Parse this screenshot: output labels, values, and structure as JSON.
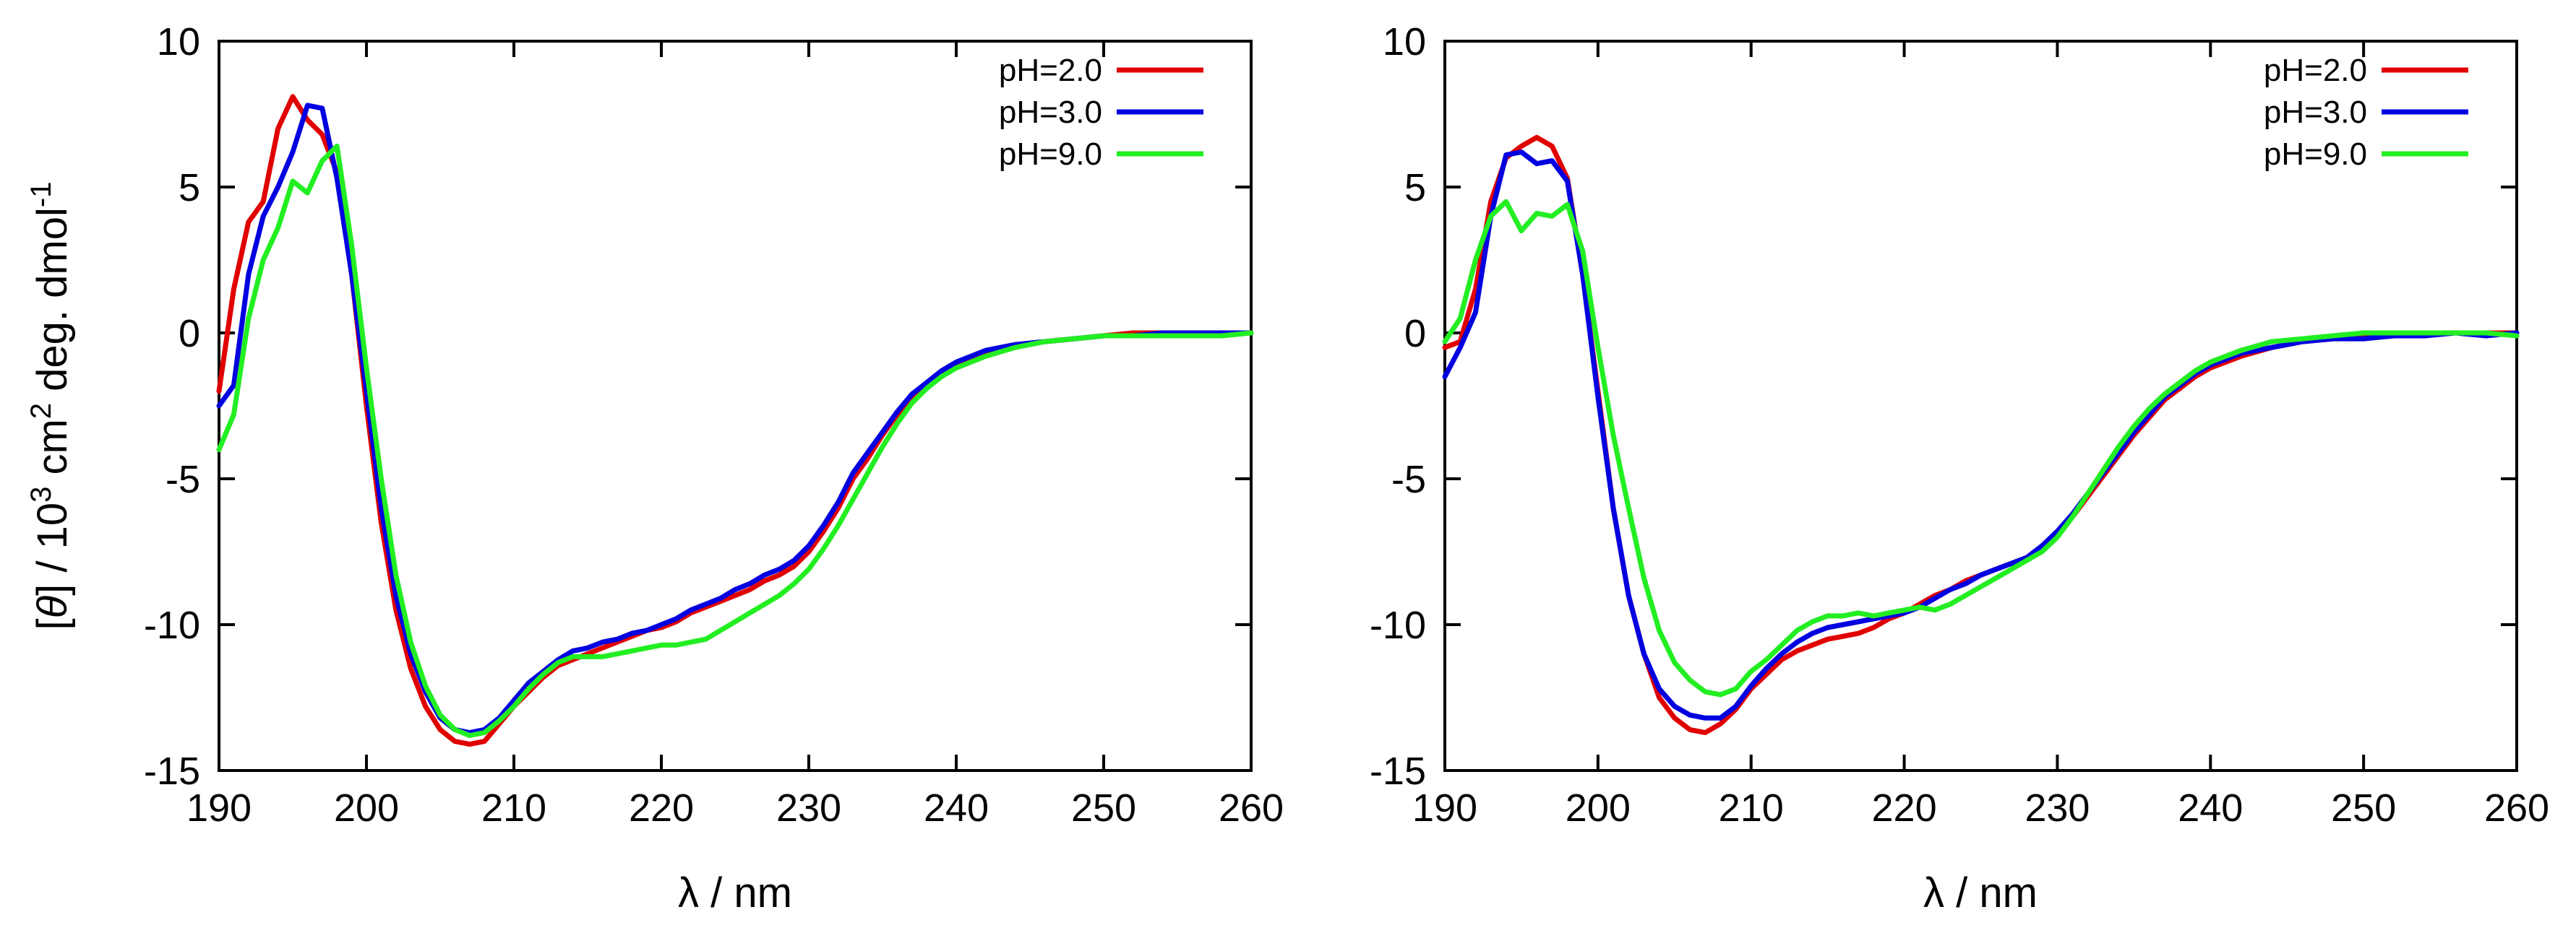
{
  "chart_data": [
    {
      "type": "line",
      "panel": "left",
      "title": "",
      "xlabel": "λ / nm",
      "ylabel": "[θ] / 10^3 cm^2 deg. dmol^-1",
      "xlim": [
        190,
        260
      ],
      "ylim": [
        -15,
        10
      ],
      "xticks": [
        190,
        200,
        210,
        220,
        230,
        240,
        250,
        260
      ],
      "yticks": [
        10,
        5,
        0,
        -5,
        -10,
        -15
      ],
      "legend_position": "top-right",
      "series": [
        {
          "name": "pH=2.0",
          "color": "#e00000",
          "x": [
            190,
            191,
            192,
            193,
            194,
            195,
            196,
            197,
            198,
            199,
            200,
            201,
            202,
            203,
            204,
            205,
            206,
            207,
            208,
            209,
            210,
            211,
            212,
            213,
            214,
            215,
            216,
            217,
            218,
            219,
            220,
            221,
            222,
            223,
            224,
            225,
            226,
            227,
            228,
            229,
            230,
            231,
            232,
            233,
            234,
            235,
            236,
            237,
            238,
            239,
            240,
            242,
            244,
            246,
            248,
            250,
            252,
            254,
            256,
            258,
            260
          ],
          "y": [
            -2.0,
            1.5,
            3.8,
            4.5,
            7.0,
            8.1,
            7.3,
            6.8,
            5.5,
            2.0,
            -2.5,
            -6.5,
            -9.5,
            -11.5,
            -12.8,
            -13.6,
            -14.0,
            -14.1,
            -14.0,
            -13.4,
            -12.8,
            -12.3,
            -11.8,
            -11.4,
            -11.2,
            -11.0,
            -10.8,
            -10.6,
            -10.4,
            -10.2,
            -10.1,
            -9.9,
            -9.6,
            -9.4,
            -9.2,
            -9.0,
            -8.8,
            -8.5,
            -8.3,
            -8.0,
            -7.5,
            -6.8,
            -6.0,
            -5.0,
            -4.3,
            -3.5,
            -2.8,
            -2.2,
            -1.8,
            -1.4,
            -1.1,
            -0.7,
            -0.4,
            -0.3,
            -0.2,
            -0.1,
            0.0,
            0.0,
            -0.1,
            0.0,
            0.0
          ]
        },
        {
          "name": "pH=3.0",
          "color": "#0000e0",
          "x": [
            190,
            191,
            192,
            193,
            194,
            195,
            196,
            197,
            198,
            199,
            200,
            201,
            202,
            203,
            204,
            205,
            206,
            207,
            208,
            209,
            210,
            211,
            212,
            213,
            214,
            215,
            216,
            217,
            218,
            219,
            220,
            221,
            222,
            223,
            224,
            225,
            226,
            227,
            228,
            229,
            230,
            231,
            232,
            233,
            234,
            235,
            236,
            237,
            238,
            239,
            240,
            242,
            244,
            246,
            248,
            250,
            252,
            254,
            256,
            258,
            260
          ],
          "y": [
            -2.5,
            -1.8,
            2.0,
            4.0,
            5.0,
            6.2,
            7.8,
            7.7,
            5.3,
            2.0,
            -2.0,
            -6.0,
            -9.0,
            -11.0,
            -12.3,
            -13.2,
            -13.6,
            -13.7,
            -13.6,
            -13.2,
            -12.6,
            -12.0,
            -11.6,
            -11.2,
            -10.9,
            -10.8,
            -10.6,
            -10.5,
            -10.3,
            -10.2,
            -10.0,
            -9.8,
            -9.5,
            -9.3,
            -9.1,
            -8.8,
            -8.6,
            -8.3,
            -8.1,
            -7.8,
            -7.3,
            -6.6,
            -5.8,
            -4.8,
            -4.1,
            -3.4,
            -2.7,
            -2.1,
            -1.7,
            -1.3,
            -1.0,
            -0.6,
            -0.4,
            -0.3,
            -0.2,
            -0.1,
            -0.1,
            0.0,
            0.0,
            0.0,
            0.0
          ]
        },
        {
          "name": "pH=9.0",
          "color": "#22ee22",
          "x": [
            190,
            191,
            192,
            193,
            194,
            195,
            196,
            197,
            198,
            199,
            200,
            201,
            202,
            203,
            204,
            205,
            206,
            207,
            208,
            209,
            210,
            211,
            212,
            213,
            214,
            215,
            216,
            217,
            218,
            219,
            220,
            221,
            222,
            223,
            224,
            225,
            226,
            227,
            228,
            229,
            230,
            231,
            232,
            233,
            234,
            235,
            236,
            237,
            238,
            239,
            240,
            242,
            244,
            246,
            248,
            250,
            252,
            254,
            256,
            258,
            260
          ],
          "y": [
            -4.0,
            -2.8,
            0.5,
            2.5,
            3.6,
            5.2,
            4.8,
            5.9,
            6.4,
            3.0,
            -1.2,
            -5.0,
            -8.3,
            -10.6,
            -12.1,
            -13.1,
            -13.6,
            -13.8,
            -13.7,
            -13.3,
            -12.8,
            -12.2,
            -11.7,
            -11.3,
            -11.1,
            -11.1,
            -11.1,
            -11.0,
            -10.9,
            -10.8,
            -10.7,
            -10.7,
            -10.6,
            -10.5,
            -10.2,
            -9.9,
            -9.6,
            -9.3,
            -9.0,
            -8.6,
            -8.1,
            -7.4,
            -6.6,
            -5.7,
            -4.8,
            -3.9,
            -3.1,
            -2.4,
            -1.9,
            -1.5,
            -1.2,
            -0.8,
            -0.5,
            -0.3,
            -0.2,
            -0.1,
            -0.1,
            -0.1,
            -0.1,
            -0.1,
            0.0
          ]
        }
      ]
    },
    {
      "type": "line",
      "panel": "right",
      "title": "",
      "xlabel": "λ / nm",
      "ylabel": "",
      "xlim": [
        190,
        260
      ],
      "ylim": [
        -15,
        10
      ],
      "xticks": [
        190,
        200,
        210,
        220,
        230,
        240,
        250,
        260
      ],
      "yticks": [
        10,
        5,
        0,
        -5,
        -10,
        -15
      ],
      "legend_position": "top-right",
      "series": [
        {
          "name": "pH=2.0",
          "color": "#e00000",
          "x": [
            190,
            191,
            192,
            193,
            194,
            195,
            196,
            197,
            198,
            199,
            200,
            201,
            202,
            203,
            204,
            205,
            206,
            207,
            208,
            209,
            210,
            211,
            212,
            213,
            214,
            215,
            216,
            217,
            218,
            219,
            220,
            221,
            222,
            223,
            224,
            225,
            226,
            227,
            228,
            229,
            230,
            231,
            232,
            233,
            234,
            235,
            236,
            237,
            238,
            239,
            240,
            242,
            244,
            246,
            248,
            250,
            252,
            254,
            256,
            258,
            260
          ],
          "y": [
            -0.5,
            -0.3,
            1.5,
            4.5,
            6.0,
            6.4,
            6.7,
            6.4,
            5.3,
            2.0,
            -2.0,
            -6.0,
            -9.0,
            -11.0,
            -12.5,
            -13.2,
            -13.6,
            -13.7,
            -13.4,
            -12.9,
            -12.2,
            -11.7,
            -11.2,
            -10.9,
            -10.7,
            -10.5,
            -10.4,
            -10.3,
            -10.1,
            -9.8,
            -9.6,
            -9.3,
            -9.0,
            -8.8,
            -8.5,
            -8.3,
            -8.1,
            -7.9,
            -7.7,
            -7.4,
            -6.9,
            -6.3,
            -5.6,
            -4.9,
            -4.2,
            -3.5,
            -2.9,
            -2.3,
            -1.9,
            -1.5,
            -1.2,
            -0.8,
            -0.5,
            -0.3,
            -0.2,
            -0.1,
            -0.1,
            0.0,
            0.0,
            0.0,
            0.0
          ]
        },
        {
          "name": "pH=3.0",
          "color": "#0000e0",
          "x": [
            190,
            191,
            192,
            193,
            194,
            195,
            196,
            197,
            198,
            199,
            200,
            201,
            202,
            203,
            204,
            205,
            206,
            207,
            208,
            209,
            210,
            211,
            212,
            213,
            214,
            215,
            216,
            217,
            218,
            219,
            220,
            221,
            222,
            223,
            224,
            225,
            226,
            227,
            228,
            229,
            230,
            231,
            232,
            233,
            234,
            235,
            236,
            237,
            238,
            239,
            240,
            242,
            244,
            246,
            248,
            250,
            252,
            254,
            256,
            258,
            260
          ],
          "y": [
            -1.5,
            -0.5,
            0.7,
            4.0,
            6.1,
            6.2,
            5.8,
            5.9,
            5.2,
            2.0,
            -2.2,
            -6.0,
            -9.0,
            -11.0,
            -12.2,
            -12.8,
            -13.1,
            -13.2,
            -13.2,
            -12.8,
            -12.1,
            -11.5,
            -11.0,
            -10.6,
            -10.3,
            -10.1,
            -10.0,
            -9.9,
            -9.8,
            -9.7,
            -9.6,
            -9.4,
            -9.1,
            -8.8,
            -8.6,
            -8.3,
            -8.1,
            -7.9,
            -7.7,
            -7.3,
            -6.8,
            -6.2,
            -5.5,
            -4.8,
            -4.1,
            -3.4,
            -2.8,
            -2.2,
            -1.8,
            -1.4,
            -1.1,
            -0.7,
            -0.5,
            -0.3,
            -0.2,
            -0.2,
            -0.1,
            -0.1,
            0.0,
            -0.1,
            0.0
          ]
        },
        {
          "name": "pH=9.0",
          "color": "#22ee22",
          "x": [
            190,
            191,
            192,
            193,
            194,
            195,
            196,
            197,
            198,
            199,
            200,
            201,
            202,
            203,
            204,
            205,
            206,
            207,
            208,
            209,
            210,
            211,
            212,
            213,
            214,
            215,
            216,
            217,
            218,
            219,
            220,
            221,
            222,
            223,
            224,
            225,
            226,
            227,
            228,
            229,
            230,
            231,
            232,
            233,
            234,
            235,
            236,
            237,
            238,
            239,
            240,
            242,
            244,
            246,
            248,
            250,
            252,
            254,
            256,
            258,
            260
          ],
          "y": [
            -0.3,
            0.5,
            2.5,
            4.0,
            4.5,
            3.5,
            4.1,
            4.0,
            4.4,
            2.8,
            -0.5,
            -3.5,
            -6.0,
            -8.4,
            -10.2,
            -11.3,
            -11.9,
            -12.3,
            -12.4,
            -12.2,
            -11.6,
            -11.2,
            -10.7,
            -10.2,
            -9.9,
            -9.7,
            -9.7,
            -9.6,
            -9.7,
            -9.6,
            -9.5,
            -9.4,
            -9.5,
            -9.3,
            -9.0,
            -8.7,
            -8.4,
            -8.1,
            -7.8,
            -7.5,
            -7.0,
            -6.3,
            -5.5,
            -4.7,
            -3.9,
            -3.2,
            -2.6,
            -2.1,
            -1.7,
            -1.3,
            -1.0,
            -0.6,
            -0.3,
            -0.2,
            -0.1,
            0.0,
            0.0,
            0.0,
            0.0,
            0.0,
            -0.1
          ]
        }
      ]
    }
  ]
}
